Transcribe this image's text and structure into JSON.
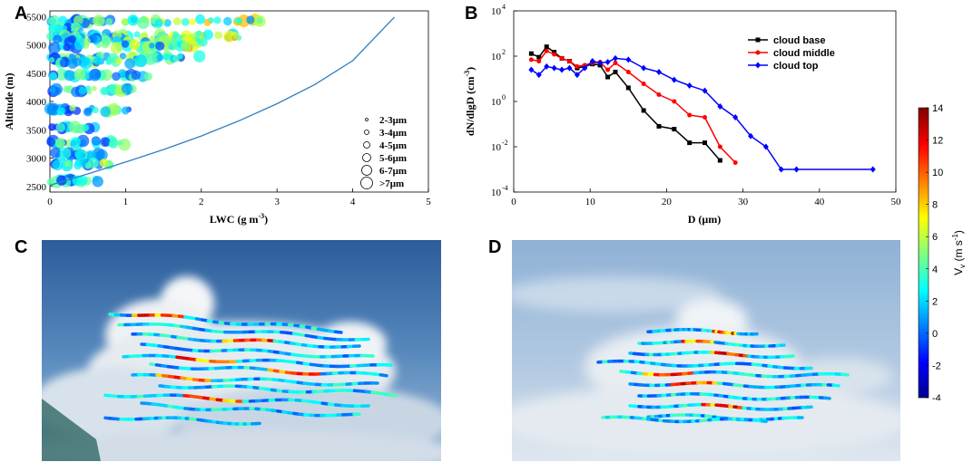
{
  "panels": {
    "a": "A",
    "b": "B",
    "c": "C",
    "d": "D"
  },
  "chart_data": [
    {
      "type": "scatter",
      "panel": "A",
      "title": "",
      "xlabel": "LWC (g m",
      "xlabel_exp": "-3",
      "xlabel_close": ")",
      "ylabel": "Altitude (m)",
      "xlim": [
        0,
        5
      ],
      "ylim": [
        2400,
        5600
      ],
      "xticks": [
        "0",
        "1",
        "2",
        "3",
        "4",
        "5"
      ],
      "yticks": [
        "2500",
        "3000",
        "3500",
        "4000",
        "4500",
        "5000",
        "5500"
      ],
      "size_legend": [
        "2-3μm",
        "3-4μm",
        "4-5μm",
        "5-6μm",
        "6-7μm",
        ">7μm"
      ],
      "fit_curve": {
        "x": [
          0,
          0.5,
          1,
          1.5,
          2,
          2.5,
          3,
          3.5,
          4,
          4.55
        ],
        "y": [
          2520,
          2720,
          2930,
          3150,
          3390,
          3660,
          3960,
          4300,
          4720,
          5490
        ]
      },
      "points_note": "horizontal bands of droplets coloured by vertical velocity",
      "bands": [
        {
          "y": 5420,
          "xmax": 2.8
        },
        {
          "y": 5300,
          "xmax": 0.4
        },
        {
          "y": 5160,
          "xmax": 2.5
        },
        {
          "y": 5080,
          "xmax": 2.1
        },
        {
          "y": 4980,
          "xmax": 1.9
        },
        {
          "y": 4780,
          "xmax": 2.0
        },
        {
          "y": 4700,
          "xmax": 1.3
        },
        {
          "y": 4460,
          "xmax": 1.3
        },
        {
          "y": 4200,
          "xmax": 1.1
        },
        {
          "y": 3850,
          "xmax": 1.1
        },
        {
          "y": 3530,
          "xmax": 0.6
        },
        {
          "y": 3270,
          "xmax": 1.0
        },
        {
          "y": 3060,
          "xmax": 0.7
        },
        {
          "y": 2900,
          "xmax": 0.8
        },
        {
          "y": 2600,
          "xmax": 0.7
        }
      ]
    },
    {
      "type": "line",
      "panel": "B",
      "xlabel": "D (μm)",
      "ylabel": "dN/dlgD (cm",
      "ylabel_exp": "-3",
      "ylabel_close": ")",
      "xlim": [
        0,
        50
      ],
      "ylim_log10": [
        -4,
        4
      ],
      "xticks": [
        "0",
        "10",
        "20",
        "30",
        "40",
        "50"
      ],
      "yticks": [
        {
          "base": "10",
          "exp": "4"
        },
        {
          "base": "10",
          "exp": "2"
        },
        {
          "base": "10",
          "exp": "0"
        },
        {
          "base": "10",
          "exp": "-2"
        },
        {
          "base": "10",
          "exp": "-4"
        }
      ],
      "series": [
        {
          "name": "cloud base",
          "color": "#000000",
          "marker": "square",
          "x": [
            2.3,
            3.3,
            4.3,
            5.3,
            6.3,
            7.3,
            8.3,
            9.3,
            10.3,
            11.3,
            12.3,
            13.3,
            15,
            17,
            19,
            21,
            23,
            25,
            27
          ],
          "y": [
            130,
            90,
            260,
            150,
            80,
            60,
            30,
            35,
            45,
            40,
            12,
            20,
            4,
            0.4,
            0.08,
            0.06,
            0.015,
            0.015,
            0.0025
          ]
        },
        {
          "name": "cloud middle",
          "color": "#ff0000",
          "marker": "circle",
          "x": [
            2.3,
            3.3,
            4.3,
            5.3,
            6.3,
            7.3,
            8.3,
            9.3,
            10.3,
            11.3,
            12.3,
            13.3,
            15,
            17,
            19,
            21,
            23,
            25,
            27,
            29
          ],
          "y": [
            70,
            60,
            170,
            120,
            80,
            60,
            35,
            40,
            50,
            55,
            25,
            50,
            20,
            6,
            2,
            1,
            0.25,
            0.2,
            0.01,
            0.002
          ]
        },
        {
          "name": "cloud top",
          "color": "#0000ff",
          "marker": "diamond",
          "x": [
            2.3,
            3.3,
            4.3,
            5.3,
            6.3,
            7.3,
            8.3,
            9.3,
            10.3,
            11.3,
            12.3,
            13.3,
            15,
            17,
            19,
            21,
            23,
            25,
            27,
            29,
            31,
            33,
            35,
            37,
            47
          ],
          "y": [
            25,
            15,
            35,
            30,
            25,
            30,
            15,
            30,
            60,
            50,
            55,
            80,
            70,
            30,
            20,
            9,
            5,
            3,
            0.6,
            0.2,
            0.03,
            0.01,
            0.001,
            0.001,
            0.001
          ]
        }
      ]
    },
    {
      "type": "colorbar",
      "label": "V",
      "label_sub": "v",
      "label_units": "(m s",
      "label_exp": "-1",
      "label_close": ")",
      "range": [
        -4,
        14
      ],
      "ticks": [
        "14",
        "12",
        "10",
        "8",
        "6",
        "4",
        "2",
        "0",
        "-2",
        "-4"
      ]
    }
  ]
}
